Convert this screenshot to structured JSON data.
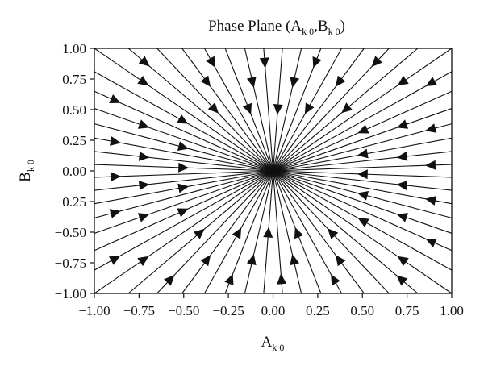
{
  "chart_data": {
    "type": "streamplot",
    "title": {
      "main": "Phase Plane (A",
      "sub1": "k 0",
      "sep": ",B",
      "sub2": "k 0",
      "close": ")"
    },
    "xlabel": {
      "main": "A",
      "sub": "k 0"
    },
    "ylabel": {
      "main": "B",
      "sub": "k 0"
    },
    "xlim": [
      -1,
      1
    ],
    "ylim": [
      -1,
      1
    ],
    "xticks": [
      "−1.00",
      "−0.75",
      "−0.50",
      "−0.25",
      "0.00",
      "0.25",
      "0.50",
      "0.75",
      "1.00"
    ],
    "yticks": [
      "−1.00",
      "−0.75",
      "−0.50",
      "−0.25",
      "0.00",
      "0.25",
      "0.50",
      "0.75",
      "1.00"
    ],
    "grid": false,
    "flow": "radial, directed toward the origin",
    "critical_point": [
      0,
      0
    ],
    "color": "#111111"
  }
}
